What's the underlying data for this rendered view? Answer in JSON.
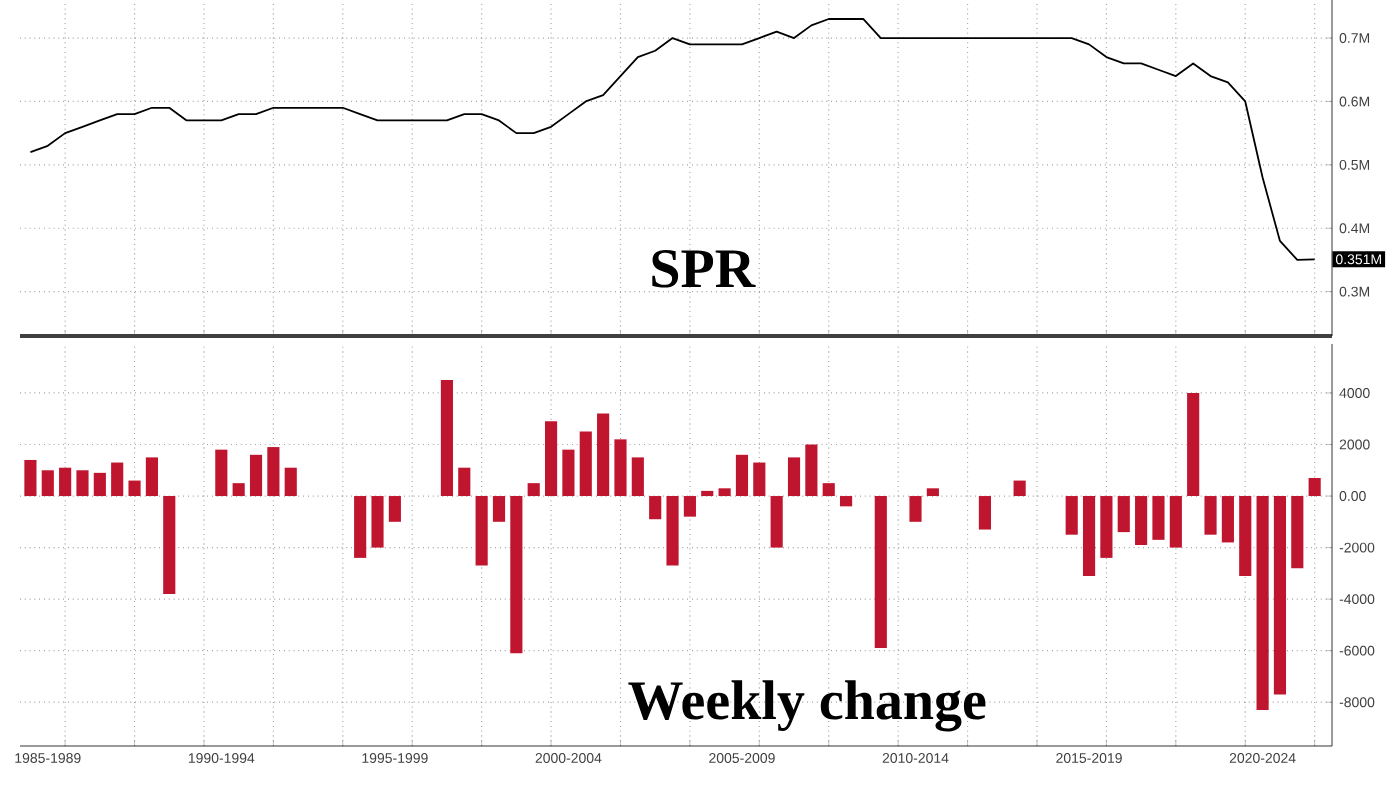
{
  "chart_data": [
    {
      "type": "line",
      "title": "SPR",
      "color": "#000000",
      "grid": true,
      "tick_labels": "y",
      "categories": [
        null,
        null,
        null,
        null,
        null,
        null,
        null,
        null,
        null,
        null,
        null,
        null,
        null,
        null,
        null,
        null,
        null,
        null,
        null,
        null,
        null,
        null,
        null,
        null,
        null,
        null,
        null,
        null,
        null,
        null,
        null,
        null,
        null,
        null,
        null,
        null,
        null,
        null,
        null,
        null,
        null,
        null,
        null,
        null,
        null,
        null,
        null,
        null,
        null,
        null,
        null,
        null,
        null,
        null,
        null,
        null,
        null,
        null,
        null,
        null,
        null,
        null,
        null,
        null,
        null,
        null,
        null,
        null,
        null,
        null,
        null,
        null,
        null,
        null,
        null
      ],
      "values": [
        0.52,
        0.53,
        0.55,
        0.56,
        0.57,
        0.58,
        0.58,
        0.59,
        0.59,
        0.57,
        0.57,
        0.57,
        0.58,
        0.58,
        0.59,
        0.59,
        0.59,
        0.59,
        0.59,
        0.58,
        0.57,
        0.57,
        0.57,
        0.57,
        0.57,
        0.58,
        0.58,
        0.57,
        0.55,
        0.55,
        0.56,
        0.58,
        0.6,
        0.61,
        0.64,
        0.67,
        0.68,
        0.7,
        0.69,
        0.69,
        0.69,
        0.69,
        0.7,
        0.71,
        0.7,
        0.72,
        0.73,
        0.73,
        0.73,
        0.7,
        0.7,
        0.7,
        0.7,
        0.7,
        0.7,
        0.7,
        0.7,
        0.7,
        0.7,
        0.7,
        0.7,
        0.69,
        0.67,
        0.66,
        0.66,
        0.65,
        0.64,
        0.66,
        0.64,
        0.63,
        0.6,
        0.48,
        0.38,
        0.35,
        0.351
      ],
      "ylim": [
        0.23,
        0.76
      ],
      "yticks": [
        {
          "value": 0.3,
          "label": "0.3M"
        },
        {
          "value": 0.4,
          "label": "0.4M"
        },
        {
          "value": 0.5,
          "label": "0.5M"
        },
        {
          "value": 0.6,
          "label": "0.6M"
        },
        {
          "value": 0.7,
          "label": "0.7M"
        }
      ],
      "annotations": [
        {
          "text": "0.351M",
          "y": 0.351
        }
      ]
    },
    {
      "type": "bar",
      "title": "Weekly change",
      "color": "#c0152f",
      "grid": true,
      "categories": [
        null,
        "1985-1989",
        null,
        null,
        null,
        null,
        null,
        null,
        null,
        null,
        null,
        "1990-1994",
        null,
        null,
        null,
        null,
        null,
        null,
        null,
        null,
        null,
        "1995-1999",
        null,
        null,
        null,
        null,
        null,
        null,
        null,
        null,
        null,
        "2000-2004",
        null,
        null,
        null,
        null,
        null,
        null,
        null,
        null,
        null,
        "2005-2009",
        null,
        null,
        null,
        null,
        null,
        null,
        null,
        null,
        null,
        "2010-2014",
        null,
        null,
        null,
        null,
        null,
        null,
        null,
        null,
        null,
        "2015-2019",
        null,
        null,
        null,
        null,
        null,
        null,
        null,
        null,
        null,
        "2020-2024",
        null,
        null,
        null
      ],
      "values": [
        1400,
        1000,
        1100,
        1000,
        900,
        1300,
        600,
        1500,
        -3800,
        null,
        null,
        1800,
        500,
        1600,
        1900,
        1100,
        null,
        null,
        null,
        -2400,
        -2000,
        -1000,
        null,
        null,
        4500,
        1100,
        -2700,
        -1000,
        -6100,
        500,
        2900,
        1800,
        2500,
        3200,
        2200,
        1500,
        -900,
        -2700,
        -800,
        200,
        300,
        1600,
        1300,
        -2000,
        1500,
        2000,
        500,
        -400,
        null,
        -5900,
        null,
        -1000,
        300,
        null,
        null,
        -1300,
        null,
        600,
        null,
        null,
        -1500,
        -3100,
        -2400,
        -1400,
        -1900,
        -1700,
        -2000,
        4000,
        -1500,
        -1800,
        -3100,
        -8300,
        -7700,
        -2800,
        700
      ],
      "ylim": [
        -9700,
        5900
      ],
      "yticks": [
        4000,
        2000,
        {
          "value": 0,
          "label": "0.00"
        },
        -2000,
        -4000,
        -6000,
        -8000
      ]
    }
  ]
}
